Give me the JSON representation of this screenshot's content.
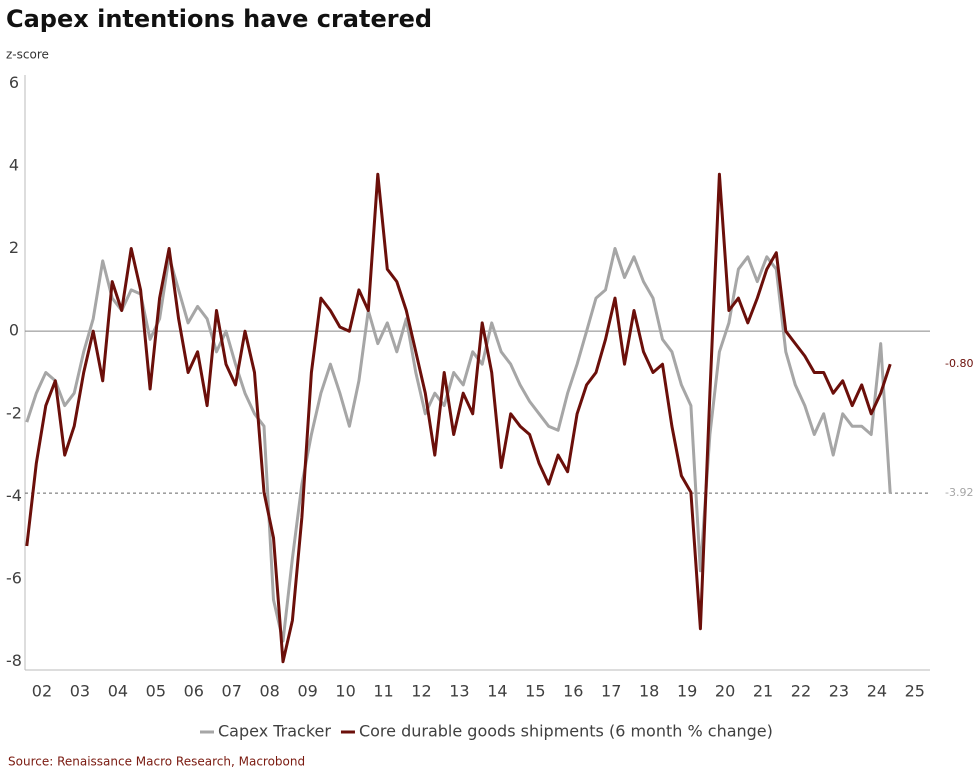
{
  "chart_data": {
    "type": "line",
    "title": "Capex intentions have cratered",
    "y_label": "z-score",
    "source": "Source: Renaissance Macro Research, Macrobond",
    "x": [
      2002.1,
      2002.35,
      2002.6,
      2002.85,
      2003.1,
      2003.35,
      2003.6,
      2003.85,
      2004.1,
      2004.35,
      2004.6,
      2004.85,
      2005.1,
      2005.35,
      2005.6,
      2005.85,
      2006.1,
      2006.35,
      2006.6,
      2006.85,
      2007.1,
      2007.35,
      2007.6,
      2007.85,
      2008.1,
      2008.35,
      2008.6,
      2008.85,
      2009.1,
      2009.35,
      2009.6,
      2009.85,
      2010.1,
      2010.35,
      2010.6,
      2010.85,
      2011.1,
      2011.35,
      2011.6,
      2011.85,
      2012.1,
      2012.35,
      2012.6,
      2012.85,
      2013.1,
      2013.35,
      2013.6,
      2013.85,
      2014.1,
      2014.35,
      2014.6,
      2014.85,
      2015.1,
      2015.35,
      2015.6,
      2015.85,
      2016.1,
      2016.35,
      2016.6,
      2016.85,
      2017.1,
      2017.35,
      2017.6,
      2017.85,
      2018.1,
      2018.35,
      2018.6,
      2018.85,
      2019.1,
      2019.35,
      2019.6,
      2019.85,
      2020.1,
      2020.35,
      2020.6,
      2020.85,
      2021.1,
      2021.35,
      2021.6,
      2021.85,
      2022.1,
      2022.35,
      2022.6,
      2022.85,
      2023.1,
      2023.35,
      2023.6,
      2023.85,
      2024.1,
      2024.35,
      2024.6,
      2024.85
    ],
    "series": [
      {
        "name": "Capex Tracker",
        "color": "#a6a6a6",
        "end_label": "-3.92",
        "values": [
          -2.2,
          -1.5,
          -1.0,
          -1.2,
          -1.8,
          -1.5,
          -0.5,
          0.3,
          1.7,
          0.8,
          0.5,
          1.0,
          0.9,
          -0.2,
          0.3,
          1.8,
          1.0,
          0.2,
          0.6,
          0.3,
          -0.5,
          0.0,
          -0.8,
          -1.5,
          -2.0,
          -2.3,
          -6.5,
          -7.5,
          -5.5,
          -3.7,
          -2.5,
          -1.5,
          -0.8,
          -1.5,
          -2.3,
          -1.2,
          0.5,
          -0.3,
          0.2,
          -0.5,
          0.3,
          -1.0,
          -2.0,
          -1.5,
          -1.8,
          -1.0,
          -1.3,
          -0.5,
          -0.8,
          0.2,
          -0.5,
          -0.8,
          -1.3,
          -1.7,
          -2.0,
          -2.3,
          -2.4,
          -1.5,
          -0.8,
          0.0,
          0.8,
          1.0,
          2.0,
          1.3,
          1.8,
          1.2,
          0.8,
          -0.2,
          -0.5,
          -1.3,
          -1.8,
          -5.8,
          -2.5,
          -0.5,
          0.2,
          1.5,
          1.8,
          1.2,
          1.8,
          1.5,
          -0.5,
          -1.3,
          -1.8,
          -2.5,
          -2.0,
          -3.0,
          -2.0,
          -2.3,
          -2.3,
          -2.5,
          -0.3,
          -3.92
        ]
      },
      {
        "name": "Core durable goods shipments (6 month % change)",
        "color": "#6b0f0a",
        "end_label": "-0.80",
        "values": [
          -5.2,
          -3.2,
          -1.8,
          -1.2,
          -3.0,
          -2.3,
          -1.0,
          0.0,
          -1.2,
          1.2,
          0.5,
          2.0,
          1.0,
          -1.4,
          0.8,
          2.0,
          0.3,
          -1.0,
          -0.5,
          -1.8,
          0.5,
          -0.8,
          -1.3,
          0.0,
          -1.0,
          -3.9,
          -5.0,
          -8.0,
          -7.0,
          -4.5,
          -1.0,
          0.8,
          0.5,
          0.1,
          0.0,
          1.0,
          0.5,
          3.8,
          1.5,
          1.2,
          0.5,
          -0.5,
          -1.5,
          -3.0,
          -1.0,
          -2.5,
          -1.5,
          -2.0,
          0.2,
          -1.0,
          -3.3,
          -2.0,
          -2.3,
          -2.5,
          -3.2,
          -3.7,
          -3.0,
          -3.4,
          -2.0,
          -1.3,
          -1.0,
          -0.2,
          0.8,
          -0.8,
          0.5,
          -0.5,
          -1.0,
          -0.8,
          -2.3,
          -3.5,
          -3.9,
          -7.2,
          -1.5,
          3.8,
          0.5,
          0.8,
          0.2,
          0.8,
          1.5,
          1.9,
          0.0,
          -0.3,
          -0.6,
          -1.0,
          -1.0,
          -1.5,
          -1.2,
          -1.8,
          -1.3,
          -2.0,
          -1.5,
          -0.8
        ]
      }
    ],
    "reference_line": -3.92,
    "xlim": [
      2002,
      2025.9
    ],
    "ylim": [
      -8.2,
      6.2
    ],
    "yticks": [
      -8,
      -6,
      -4,
      -2,
      0,
      2,
      4,
      6
    ],
    "xticks": [
      {
        "value": 2002.5,
        "label": "02"
      },
      {
        "value": 2003.5,
        "label": "03"
      },
      {
        "value": 2004.5,
        "label": "04"
      },
      {
        "value": 2005.5,
        "label": "05"
      },
      {
        "value": 2006.5,
        "label": "06"
      },
      {
        "value": 2007.5,
        "label": "07"
      },
      {
        "value": 2008.5,
        "label": "08"
      },
      {
        "value": 2009.5,
        "label": "09"
      },
      {
        "value": 2010.5,
        "label": "10"
      },
      {
        "value": 2011.5,
        "label": "11"
      },
      {
        "value": 2012.5,
        "label": "12"
      },
      {
        "value": 2013.5,
        "label": "13"
      },
      {
        "value": 2014.5,
        "label": "14"
      },
      {
        "value": 2015.5,
        "label": "15"
      },
      {
        "value": 2016.5,
        "label": "16"
      },
      {
        "value": 2017.5,
        "label": "17"
      },
      {
        "value": 2018.5,
        "label": "18"
      },
      {
        "value": 2019.5,
        "label": "19"
      },
      {
        "value": 2020.5,
        "label": "20"
      },
      {
        "value": 2021.5,
        "label": "21"
      },
      {
        "value": 2022.5,
        "label": "22"
      },
      {
        "value": 2023.5,
        "label": "23"
      },
      {
        "value": 2024.5,
        "label": "24"
      },
      {
        "value": 2025.5,
        "label": "25"
      }
    ],
    "grid": false
  }
}
